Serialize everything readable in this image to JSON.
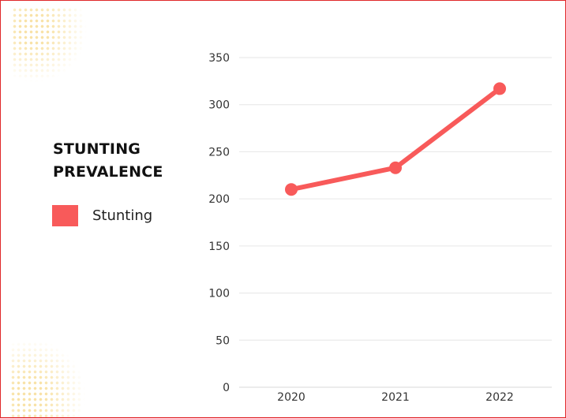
{
  "title": "STUNTING PREVALENCE",
  "legend": {
    "label": "Stunting",
    "color": "#f85a5a"
  },
  "chart_data": {
    "type": "line",
    "title": "STUNTING PREVALENCE",
    "xlabel": "",
    "ylabel": "",
    "categories": [
      "2020",
      "2021",
      "2022"
    ],
    "series": [
      {
        "name": "Stunting",
        "values": [
          210,
          233,
          317
        ],
        "color": "#f85a5a"
      }
    ],
    "ylim": [
      0,
      350
    ],
    "yticks": [
      0,
      50,
      100,
      150,
      200,
      250,
      300,
      350
    ],
    "grid": true,
    "legend_position": "left"
  }
}
